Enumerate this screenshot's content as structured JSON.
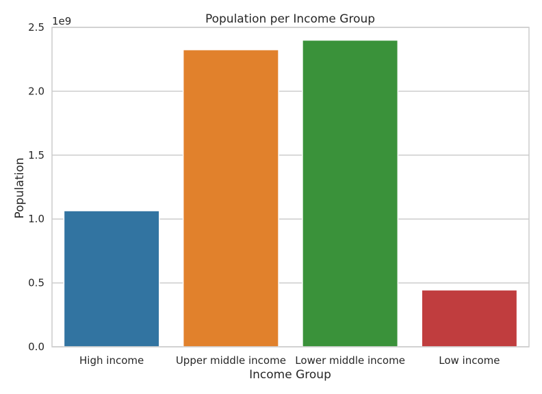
{
  "chart_data": {
    "type": "bar",
    "title": "Population per Income Group",
    "xlabel": "Income Group",
    "ylabel": "Population",
    "y_offset_label": "1e9",
    "y_scale_factor": 1000000000,
    "categories": [
      "High income",
      "Upper middle income",
      "Lower middle income",
      "Low income"
    ],
    "values": [
      1065000000,
      2325000000,
      2400000000,
      445000000
    ],
    "colors": [
      "#3274a1",
      "#e1812c",
      "#3a923a",
      "#c03d3e"
    ],
    "ylim": [
      0,
      2500000000
    ],
    "y_ticks": [
      0,
      500000000,
      1000000000,
      1500000000,
      2000000000,
      2500000000
    ],
    "y_tick_labels": [
      "0.0",
      "0.5",
      "1.0",
      "1.5",
      "2.0",
      "2.5"
    ],
    "grid": true,
    "grid_axis": "y",
    "legend": "none"
  }
}
